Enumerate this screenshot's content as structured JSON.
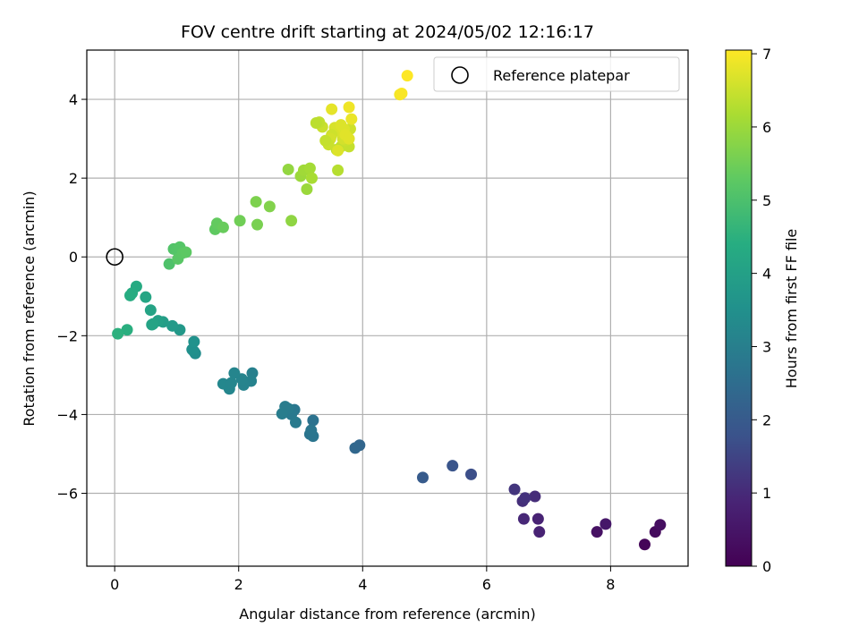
{
  "chart_data": {
    "type": "scatter",
    "title": "FOV centre drift starting at 2024/05/02 12:16:17",
    "xlabel": "Angular distance from reference (arcmin)",
    "ylabel": "Rotation from reference (arcmin)",
    "xlim": [
      -0.45,
      9.25
    ],
    "ylim": [
      -7.85,
      5.25
    ],
    "xticks": [
      0,
      2,
      4,
      6,
      8
    ],
    "yticks": [
      -6,
      -4,
      -2,
      0,
      2,
      4
    ],
    "grid": true,
    "legend": {
      "placement": "top-right",
      "entries": [
        "Reference platepar"
      ]
    },
    "reference_point": {
      "x": 0,
      "y": 0,
      "marker": "open-circle"
    },
    "colormap": "viridis",
    "colorbar": {
      "label": "Hours from first FF file",
      "min": 0,
      "max": 7.05,
      "ticks": [
        0,
        1,
        2,
        3,
        4,
        5,
        6,
        7
      ]
    },
    "series": [
      {
        "x": [
          8.55,
          8.72,
          8.8,
          7.78,
          7.92,
          6.85,
          6.83,
          6.6,
          6.78,
          6.58,
          6.62,
          6.45,
          5.75,
          5.45,
          4.97,
          3.95,
          3.88,
          3.2,
          3.15,
          3.2,
          3.17,
          2.9,
          2.85,
          2.92,
          2.8,
          2.75,
          2.7,
          2.22,
          2.2,
          2.08,
          2.05,
          1.93,
          1.85,
          1.75,
          1.88,
          1.3,
          1.28,
          1.25,
          1.28,
          1.05,
          0.93,
          0.78,
          0.7,
          0.62,
          0.58,
          0.6,
          0.5,
          0.35,
          0.28,
          0.25,
          0.2,
          0.05,
          0.88,
          0.95,
          1.0,
          1.05,
          1.02,
          1.1,
          1.15,
          1.62,
          1.65,
          1.75,
          2.02,
          2.3,
          2.28,
          2.5,
          2.85,
          2.8,
          3.0,
          3.05,
          3.15,
          3.1,
          3.18,
          3.6,
          3.58,
          3.65,
          3.78,
          3.72,
          3.7,
          3.8,
          3.75,
          3.68,
          3.62,
          3.55,
          3.5,
          3.48,
          3.45,
          3.4,
          3.35,
          3.3,
          3.25,
          3.6,
          3.65,
          3.7,
          3.72,
          3.78,
          3.5,
          3.82,
          3.78,
          4.6,
          4.63,
          4.72
        ],
        "y": [
          -7.3,
          -6.98,
          -6.8,
          -6.98,
          -6.78,
          -6.98,
          -6.65,
          -6.65,
          -6.08,
          -6.2,
          -6.12,
          -5.9,
          -5.52,
          -5.3,
          -5.6,
          -4.78,
          -4.85,
          -4.15,
          -4.5,
          -4.55,
          -4.4,
          -3.88,
          -4.0,
          -4.2,
          -3.85,
          -3.8,
          -3.98,
          -2.95,
          -3.15,
          -3.25,
          -3.1,
          -2.95,
          -3.35,
          -3.22,
          -3.2,
          -2.45,
          -2.4,
          -2.35,
          -2.15,
          -1.85,
          -1.75,
          -1.65,
          -1.62,
          -1.7,
          -1.35,
          -1.72,
          -1.02,
          -0.75,
          -0.92,
          -0.98,
          -1.85,
          -1.95,
          -0.18,
          0.2,
          0.18,
          0.25,
          -0.05,
          0.1,
          0.12,
          0.7,
          0.85,
          0.75,
          0.92,
          0.82,
          1.4,
          1.28,
          0.92,
          2.22,
          2.05,
          2.2,
          2.25,
          1.72,
          2.0,
          2.2,
          2.72,
          2.8,
          2.8,
          2.95,
          3.1,
          3.25,
          3.05,
          3.0,
          3.2,
          3.28,
          3.1,
          3.0,
          2.85,
          2.95,
          3.3,
          3.42,
          3.4,
          2.7,
          3.35,
          3.25,
          3.1,
          3.0,
          3.75,
          3.5,
          3.8,
          4.12,
          4.15,
          4.6
        ],
        "c": [
          0.1,
          0.25,
          0.35,
          0.4,
          0.55,
          0.85,
          0.85,
          0.95,
          1.05,
          1.1,
          1.15,
          1.2,
          1.7,
          1.85,
          2.0,
          2.3,
          2.35,
          2.65,
          2.7,
          2.72,
          2.75,
          2.8,
          2.85,
          2.88,
          2.9,
          2.92,
          2.95,
          3.05,
          3.1,
          3.12,
          3.15,
          3.18,
          3.2,
          3.25,
          3.22,
          3.4,
          3.45,
          3.5,
          3.55,
          3.75,
          3.8,
          3.9,
          4.0,
          4.05,
          4.1,
          4.08,
          4.15,
          4.3,
          4.35,
          4.38,
          4.45,
          4.5,
          5.05,
          5.1,
          5.12,
          5.15,
          5.2,
          5.22,
          5.25,
          5.3,
          5.35,
          5.4,
          5.5,
          5.6,
          5.65,
          5.7,
          5.85,
          5.9,
          6.0,
          6.05,
          6.1,
          6.0,
          6.15,
          6.3,
          6.35,
          6.4,
          6.45,
          6.5,
          6.55,
          6.55,
          6.6,
          6.6,
          6.65,
          6.65,
          6.55,
          6.6,
          6.5,
          6.45,
          6.5,
          6.4,
          6.35,
          6.7,
          6.7,
          6.7,
          6.75,
          6.75,
          6.8,
          6.85,
          6.9,
          6.95,
          7.0,
          7.05
        ]
      }
    ]
  }
}
